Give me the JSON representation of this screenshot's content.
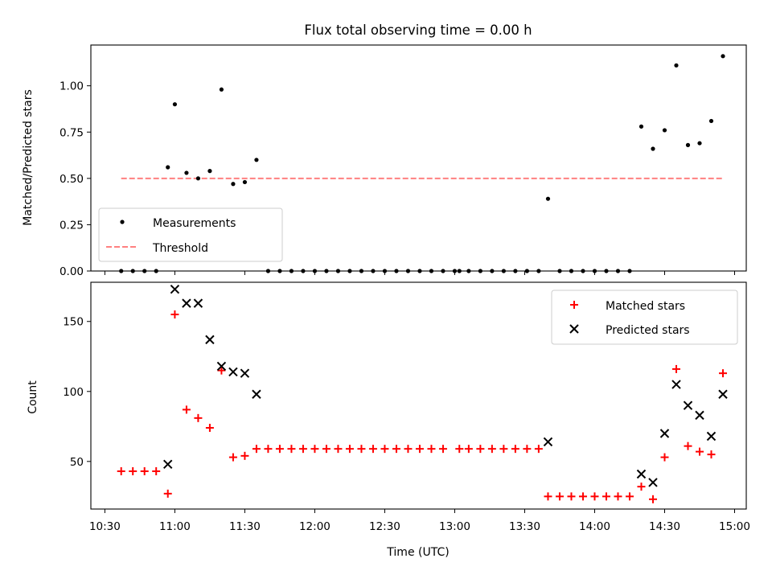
{
  "chart_data": [
    {
      "type": "scatter",
      "title": "Flux total observing time = 0.00 h",
      "xlabel": "",
      "ylabel": "Matched/Predicted stars",
      "xlim": [
        "10:24",
        "15:05"
      ],
      "ylim": [
        0.0,
        1.22
      ],
      "yticks": [
        0.0,
        0.25,
        0.5,
        0.75,
        1.0
      ],
      "ytick_labels": [
        "0.00",
        "0.25",
        "0.50",
        "0.75",
        "1.00"
      ],
      "legend_position": "lower-left",
      "grid": false,
      "series": [
        {
          "name": "Measurements",
          "marker": "dot",
          "color": "#000000",
          "points": [
            [
              "10:37",
              0.0
            ],
            [
              "10:42",
              0.0
            ],
            [
              "10:47",
              0.0
            ],
            [
              "10:52",
              0.0
            ],
            [
              "10:57",
              0.56
            ],
            [
              "11:00",
              0.9
            ],
            [
              "11:05",
              0.53
            ],
            [
              "11:10",
              0.5
            ],
            [
              "11:15",
              0.54
            ],
            [
              "11:20",
              0.98
            ],
            [
              "11:25",
              0.47
            ],
            [
              "11:30",
              0.48
            ],
            [
              "11:35",
              0.6
            ],
            [
              "11:40",
              0.0
            ],
            [
              "11:45",
              0.0
            ],
            [
              "11:50",
              0.0
            ],
            [
              "11:55",
              0.0
            ],
            [
              "12:00",
              0.0
            ],
            [
              "12:05",
              0.0
            ],
            [
              "12:10",
              0.0
            ],
            [
              "12:15",
              0.0
            ],
            [
              "12:20",
              0.0
            ],
            [
              "12:25",
              0.0
            ],
            [
              "12:30",
              0.0
            ],
            [
              "12:35",
              0.0
            ],
            [
              "12:40",
              0.0
            ],
            [
              "12:45",
              0.0
            ],
            [
              "12:50",
              0.0
            ],
            [
              "12:55",
              0.0
            ],
            [
              "13:00",
              0.0
            ],
            [
              "13:02",
              0.0
            ],
            [
              "13:06",
              0.0
            ],
            [
              "13:11",
              0.0
            ],
            [
              "13:16",
              0.0
            ],
            [
              "13:21",
              0.0
            ],
            [
              "13:26",
              0.0
            ],
            [
              "13:31",
              0.0
            ],
            [
              "13:36",
              0.0
            ],
            [
              "13:40",
              0.39
            ],
            [
              "13:45",
              0.0
            ],
            [
              "13:50",
              0.0
            ],
            [
              "13:55",
              0.0
            ],
            [
              "14:00",
              0.0
            ],
            [
              "14:05",
              0.0
            ],
            [
              "14:10",
              0.0
            ],
            [
              "14:15",
              0.0
            ],
            [
              "14:20",
              0.78
            ],
            [
              "14:25",
              0.66
            ],
            [
              "14:30",
              0.76
            ],
            [
              "14:35",
              1.11
            ],
            [
              "14:40",
              0.68
            ],
            [
              "14:45",
              0.69
            ],
            [
              "14:50",
              0.81
            ],
            [
              "14:55",
              1.16
            ]
          ]
        },
        {
          "name": "Threshold",
          "marker": "dashed-line",
          "color": "#ff8080",
          "points": [
            [
              "10:37",
              0.5
            ],
            [
              "14:55",
              0.5
            ]
          ]
        }
      ]
    },
    {
      "type": "scatter",
      "title": "",
      "xlabel": "Time (UTC)",
      "ylabel": "Count",
      "xlim": [
        "10:24",
        "15:05"
      ],
      "ylim": [
        16,
        178
      ],
      "yticks": [
        50,
        100,
        150
      ],
      "xtick_labels": [
        "10:30",
        "11:00",
        "11:30",
        "12:00",
        "12:30",
        "13:00",
        "13:30",
        "14:00",
        "14:30",
        "15:00"
      ],
      "legend_position": "upper-right",
      "grid": false,
      "series": [
        {
          "name": "Matched stars",
          "marker": "plus",
          "color": "#ff0000",
          "points": [
            [
              "10:37",
              43
            ],
            [
              "10:42",
              43
            ],
            [
              "10:47",
              43
            ],
            [
              "10:52",
              43
            ],
            [
              "10:57",
              27
            ],
            [
              "11:00",
              155
            ],
            [
              "11:05",
              87
            ],
            [
              "11:10",
              81
            ],
            [
              "11:15",
              74
            ],
            [
              "11:20",
              115
            ],
            [
              "11:25",
              53
            ],
            [
              "11:30",
              54
            ],
            [
              "11:35",
              59
            ],
            [
              "11:40",
              59
            ],
            [
              "11:45",
              59
            ],
            [
              "11:50",
              59
            ],
            [
              "11:55",
              59
            ],
            [
              "12:00",
              59
            ],
            [
              "12:05",
              59
            ],
            [
              "12:10",
              59
            ],
            [
              "12:15",
              59
            ],
            [
              "12:20",
              59
            ],
            [
              "12:25",
              59
            ],
            [
              "12:30",
              59
            ],
            [
              "12:35",
              59
            ],
            [
              "12:40",
              59
            ],
            [
              "12:45",
              59
            ],
            [
              "12:50",
              59
            ],
            [
              "12:55",
              59
            ],
            [
              "13:02",
              59
            ],
            [
              "13:06",
              59
            ],
            [
              "13:11",
              59
            ],
            [
              "13:16",
              59
            ],
            [
              "13:21",
              59
            ],
            [
              "13:26",
              59
            ],
            [
              "13:31",
              59
            ],
            [
              "13:36",
              59
            ],
            [
              "13:40",
              25
            ],
            [
              "13:45",
              25
            ],
            [
              "13:50",
              25
            ],
            [
              "13:55",
              25
            ],
            [
              "14:00",
              25
            ],
            [
              "14:05",
              25
            ],
            [
              "14:10",
              25
            ],
            [
              "14:15",
              25
            ],
            [
              "14:20",
              32
            ],
            [
              "14:25",
              23
            ],
            [
              "14:30",
              53
            ],
            [
              "14:35",
              116
            ],
            [
              "14:40",
              61
            ],
            [
              "14:45",
              57
            ],
            [
              "14:50",
              55
            ],
            [
              "14:55",
              113
            ]
          ]
        },
        {
          "name": "Predicted stars",
          "marker": "x",
          "color": "#000000",
          "points": [
            [
              "10:57",
              48
            ],
            [
              "11:00",
              173
            ],
            [
              "11:05",
              163
            ],
            [
              "11:10",
              163
            ],
            [
              "11:15",
              137
            ],
            [
              "11:20",
              118
            ],
            [
              "11:25",
              114
            ],
            [
              "11:30",
              113
            ],
            [
              "11:35",
              98
            ],
            [
              "13:40",
              64
            ],
            [
              "14:20",
              41
            ],
            [
              "14:25",
              35
            ],
            [
              "14:30",
              70
            ],
            [
              "14:35",
              105
            ],
            [
              "14:40",
              90
            ],
            [
              "14:45",
              83
            ],
            [
              "14:50",
              68
            ],
            [
              "14:55",
              98
            ]
          ]
        }
      ]
    }
  ]
}
